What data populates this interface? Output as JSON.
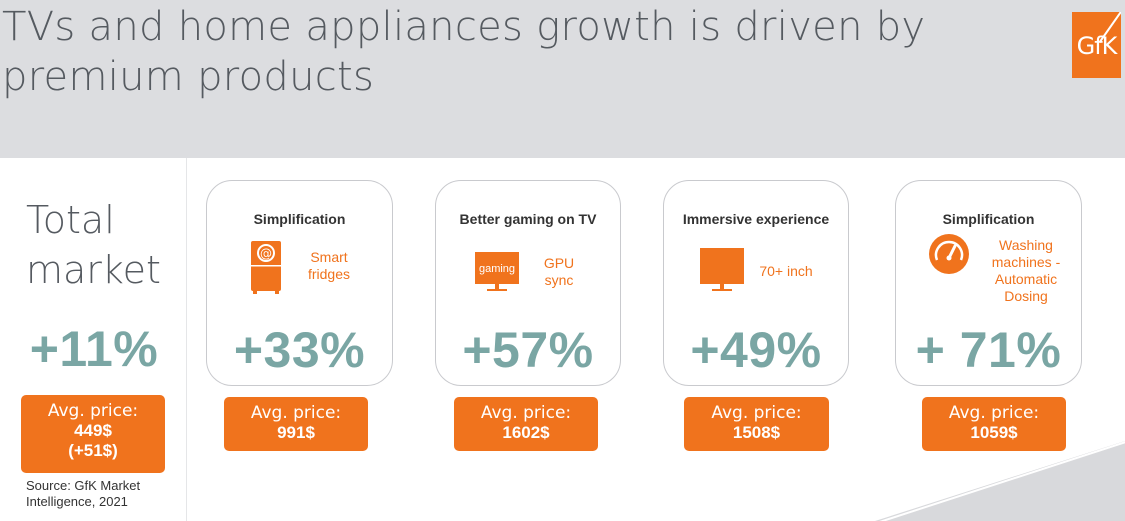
{
  "title": {
    "line1": "TVs and home appliances growth is driven by",
    "line2": "premium products"
  },
  "logo": {
    "text": "GfK"
  },
  "total": {
    "line1": "Total",
    "line2": "market",
    "growth": "+11%",
    "price_label": "Avg. price:",
    "price_value": "449$",
    "price_change": "(+51$)"
  },
  "source": {
    "line1": "Source: GfK Market",
    "line2": "Intelligence, 2021"
  },
  "cards": [
    {
      "title": "Simplification",
      "feature_line1": "Smart",
      "feature_line2": "fridges",
      "icon": "fridge-icon",
      "growth": "+33%",
      "price_label": "Avg. price:",
      "price_value": "991$"
    },
    {
      "title": "Better gaming on TV",
      "icon_text": "gaming",
      "feature_line1": "GPU",
      "feature_line2": "sync",
      "icon": "tv-icon",
      "growth": "+57%",
      "price_label": "Avg. price:",
      "price_value": "1602$"
    },
    {
      "title": "Immersive experience",
      "feature_line1": "70+ inch",
      "icon": "tv-icon",
      "growth": "+49%",
      "price_label": "Avg. price:",
      "price_value": "1508$"
    },
    {
      "title": "Simplification",
      "feature_line1": "Washing",
      "feature_line2": "machines -",
      "feature_line3": "Automatic",
      "feature_line4": "Dosing",
      "icon": "gauge-icon",
      "growth": "+ 71%",
      "price_label": "Avg. price:",
      "price_value": "1059$"
    }
  ],
  "colors": {
    "accent": "#f0731d",
    "growth": "#7aa6a4",
    "text": "#555a60"
  }
}
